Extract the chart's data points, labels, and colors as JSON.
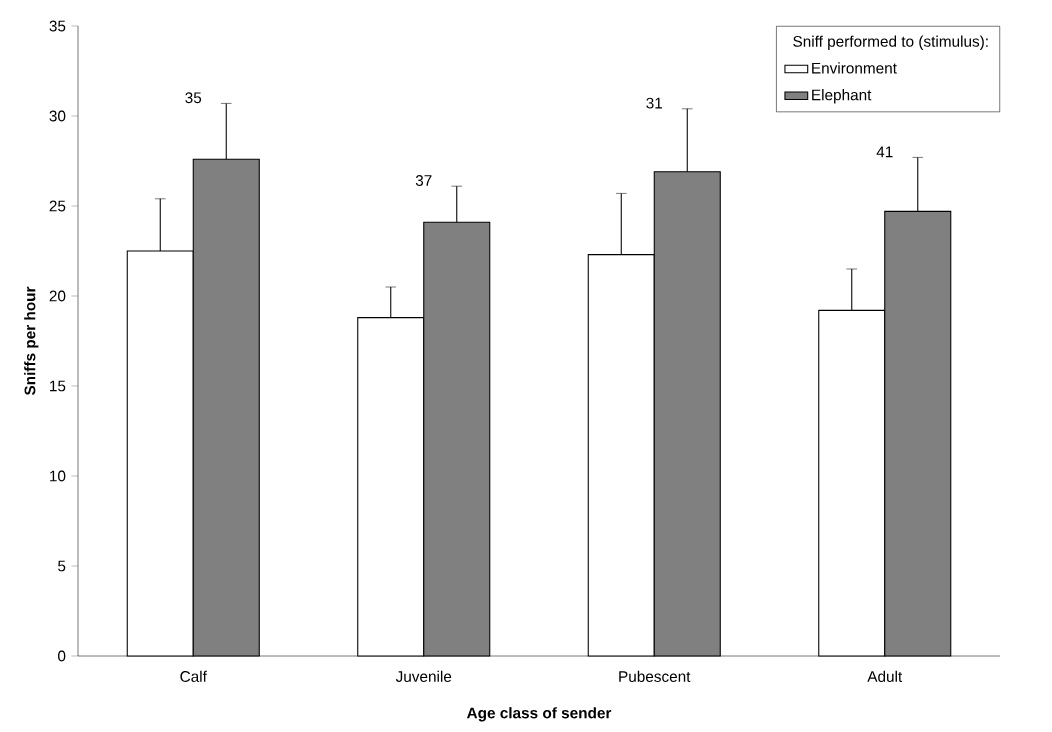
{
  "chart_data": {
    "type": "bar",
    "xlabel": "Age class of sender",
    "ylabel": "Sniffs per hour",
    "legend_title": "Sniff performed to (stimulus):",
    "categories": [
      "Calf",
      "Juvenile",
      "Pubescent",
      "Adult"
    ],
    "series": [
      {
        "name": "Environment",
        "color": "#ffffff",
        "values": [
          22.5,
          18.8,
          22.3,
          19.2
        ],
        "errors": [
          [
            22.5,
            25.4
          ],
          [
            18.8,
            20.5
          ],
          [
            22.3,
            25.7
          ],
          [
            19.2,
            21.5
          ]
        ]
      },
      {
        "name": "Elephant",
        "color": "#808080",
        "values": [
          27.6,
          24.1,
          26.9,
          24.7
        ],
        "errors": [
          [
            27.6,
            30.7
          ],
          [
            24.1,
            26.1
          ],
          [
            26.9,
            30.4
          ],
          [
            24.7,
            27.7
          ]
        ]
      }
    ],
    "ylim": [
      0,
      35
    ],
    "yticks": [
      0,
      5,
      10,
      15,
      20,
      25,
      30,
      35
    ],
    "legend": "top right",
    "annotations": [
      "35",
      "37",
      "31",
      "41"
    ]
  }
}
